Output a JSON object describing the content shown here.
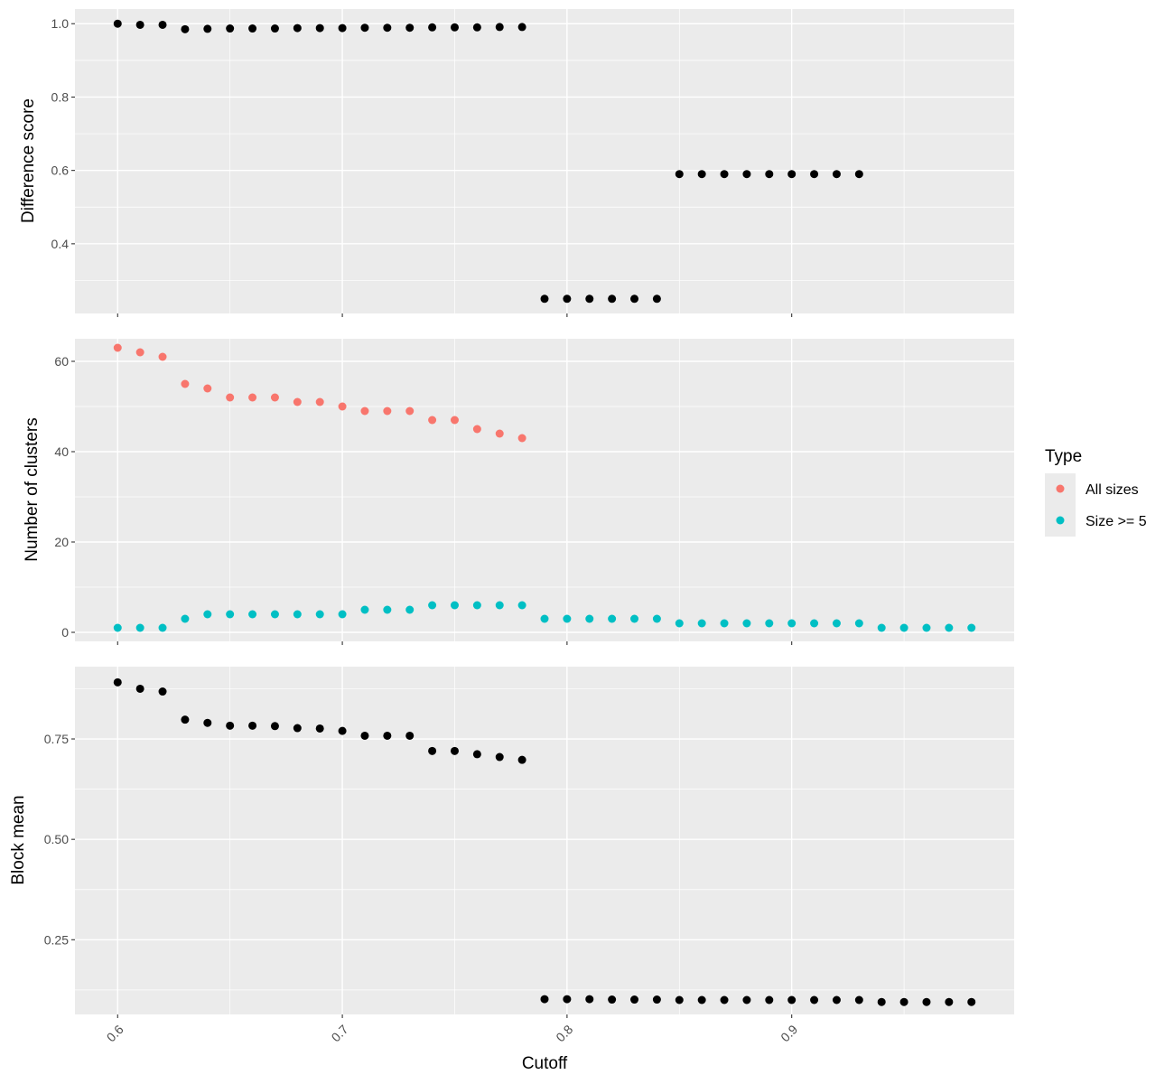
{
  "chart_data": {
    "type": "scatter",
    "xlabel": "Cutoff",
    "x_ticks": [
      0.6,
      0.7,
      0.8,
      0.9
    ],
    "x_tick_labels": [
      "0.6",
      "0.7",
      "0.8",
      "0.9"
    ],
    "xlim": [
      0.581,
      0.999
    ],
    "x": [
      0.6,
      0.61,
      0.62,
      0.63,
      0.64,
      0.65,
      0.66,
      0.67,
      0.68,
      0.69,
      0.7,
      0.71,
      0.72,
      0.73,
      0.74,
      0.75,
      0.76,
      0.77,
      0.78,
      0.79,
      0.8,
      0.81,
      0.82,
      0.83,
      0.84,
      0.85,
      0.86,
      0.87,
      0.88,
      0.89,
      0.9,
      0.91,
      0.92,
      0.93,
      0.94,
      0.95,
      0.96,
      0.97,
      0.98
    ],
    "legend": {
      "title": "Type",
      "position": "right",
      "entries": [
        {
          "label": "All sizes",
          "color": "#F8766D"
        },
        {
          "label": "Size >= 5",
          "color": "#00BFC4"
        }
      ]
    },
    "panels": [
      {
        "ylabel": "Difference score",
        "y_ticks": [
          0.4,
          0.6,
          0.8,
          1.0
        ],
        "y_tick_labels": [
          "0.4",
          "0.6",
          "0.8",
          "1.0"
        ],
        "ylim": [
          0.21,
          1.04
        ],
        "series": [
          {
            "name": "Difference score",
            "color": "#000000",
            "values": [
              1.0,
              0.997,
              0.997,
              0.985,
              0.986,
              0.987,
              0.987,
              0.987,
              0.988,
              0.988,
              0.988,
              0.989,
              0.989,
              0.989,
              0.99,
              0.99,
              0.99,
              0.991,
              0.991,
              0.25,
              0.25,
              0.25,
              0.25,
              0.25,
              0.25,
              0.59,
              0.59,
              0.59,
              0.59,
              0.59,
              0.59,
              0.59,
              0.59,
              0.59,
              null,
              null,
              null,
              null,
              null
            ]
          }
        ]
      },
      {
        "ylabel": "Number of clusters",
        "y_ticks": [
          0,
          20,
          40,
          60
        ],
        "y_tick_labels": [
          "0",
          "20",
          "40",
          "60"
        ],
        "ylim": [
          -2,
          65
        ],
        "series": [
          {
            "name": "All sizes",
            "color": "#F8766D",
            "values": [
              63,
              62,
              61,
              55,
              54,
              52,
              52,
              52,
              51,
              51,
              50,
              49,
              49,
              49,
              47,
              47,
              45,
              44,
              43,
              null,
              null,
              null,
              null,
              null,
              null,
              null,
              null,
              null,
              null,
              null,
              null,
              null,
              null,
              null,
              null,
              null,
              null,
              null,
              null
            ]
          },
          {
            "name": "Size >= 5",
            "color": "#00BFC4",
            "values": [
              1,
              1,
              1,
              3,
              4,
              4,
              4,
              4,
              4,
              4,
              4,
              5,
              5,
              5,
              6,
              6,
              6,
              6,
              6,
              3,
              3,
              3,
              3,
              3,
              3,
              2,
              2,
              2,
              2,
              2,
              2,
              2,
              2,
              2,
              1,
              1,
              1,
              1,
              1
            ]
          }
        ]
      },
      {
        "ylabel": "Block mean",
        "y_ticks": [
          0.25,
          0.5,
          0.75
        ],
        "y_tick_labels": [
          "0.25",
          "0.50",
          "0.75"
        ],
        "ylim": [
          0.064,
          0.93
        ],
        "series": [
          {
            "name": "Block mean",
            "color": "#000000",
            "values": [
              0.891,
              0.875,
              0.868,
              0.798,
              0.79,
              0.783,
              0.783,
              0.782,
              0.777,
              0.776,
              0.77,
              0.758,
              0.758,
              0.758,
              0.72,
              0.72,
              0.712,
              0.705,
              0.698,
              0.102,
              0.102,
              0.102,
              0.101,
              0.101,
              0.101,
              0.1,
              0.1,
              0.1,
              0.1,
              0.1,
              0.1,
              0.1,
              0.1,
              0.1,
              0.095,
              0.095,
              0.095,
              0.095,
              0.095
            ]
          }
        ]
      }
    ]
  }
}
